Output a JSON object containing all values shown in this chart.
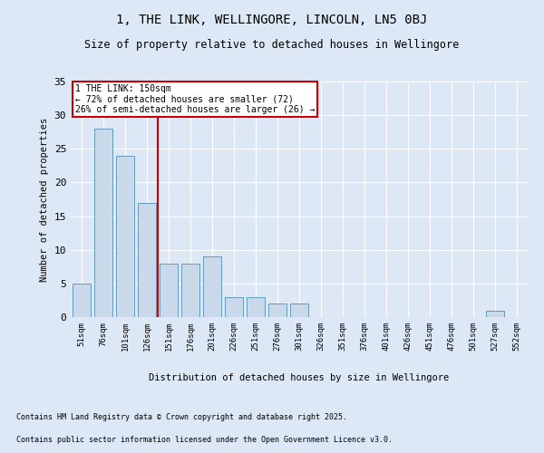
{
  "title1": "1, THE LINK, WELLINGORE, LINCOLN, LN5 0BJ",
  "title2": "Size of property relative to detached houses in Wellingore",
  "xlabel": "Distribution of detached houses by size in Wellingore",
  "ylabel": "Number of detached properties",
  "categories": [
    "51sqm",
    "76sqm",
    "101sqm",
    "126sqm",
    "151sqm",
    "176sqm",
    "201sqm",
    "226sqm",
    "251sqm",
    "276sqm",
    "301sqm",
    "326sqm",
    "351sqm",
    "376sqm",
    "401sqm",
    "426sqm",
    "451sqm",
    "476sqm",
    "501sqm",
    "527sqm",
    "552sqm"
  ],
  "values": [
    5,
    28,
    24,
    17,
    8,
    8,
    9,
    3,
    3,
    2,
    2,
    0,
    0,
    0,
    0,
    0,
    0,
    0,
    0,
    1,
    0
  ],
  "bar_color": "#c9d9ea",
  "bar_edge_color": "#6699bb",
  "vline_index": 4,
  "marker_label": "1 THE LINK: 150sqm",
  "annotation_line1": "← 72% of detached houses are smaller (72)",
  "annotation_line2": "26% of semi-detached houses are larger (26) →",
  "annotation_box_color": "#ffffff",
  "annotation_box_edge": "#cc0000",
  "vline_color": "#cc0000",
  "ylim": [
    0,
    35
  ],
  "yticks": [
    0,
    5,
    10,
    15,
    20,
    25,
    30,
    35
  ],
  "footnote1": "Contains HM Land Registry data © Crown copyright and database right 2025.",
  "footnote2": "Contains public sector information licensed under the Open Government Licence v3.0.",
  "background_color": "#dce8f5",
  "plot_background": "#dce8f5"
}
